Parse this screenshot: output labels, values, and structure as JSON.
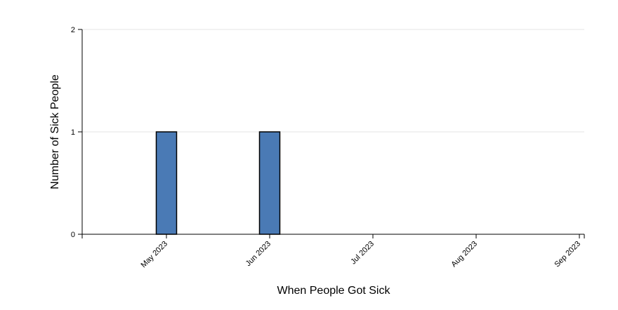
{
  "chart_data": {
    "type": "bar",
    "title": "",
    "xlabel": "When People Got Sick",
    "ylabel": "Number of Sick People",
    "x_ticks": [
      "May 2023",
      "Jun 2023",
      "Jul 2023",
      "Aug 2023",
      "Sep 2023"
    ],
    "y_ticks": [
      "0",
      "1",
      "2"
    ],
    "ylim": [
      0,
      2
    ],
    "grid": true,
    "bars": [
      {
        "x": "May 2023",
        "value": 1
      },
      {
        "x": "Jun 2023",
        "value": 1
      }
    ],
    "colors": {
      "bar_fill": "#4a7ab5",
      "bar_stroke": "#000000",
      "grid": "#e6e6e6",
      "axis": "#000000"
    }
  }
}
